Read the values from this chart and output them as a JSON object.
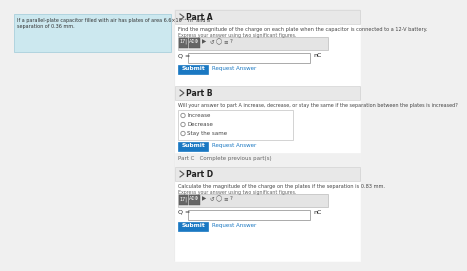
{
  "bg_color": "#f0f0f0",
  "white": "#ffffff",
  "teal_bg": "#cce8ef",
  "blue_btn": "#1a78c2",
  "link_color": "#1a78c2",
  "border_color": "#cccccc",
  "text_dark": "#222222",
  "text_mid": "#444444",
  "text_light": "#666666",
  "light_gray": "#e8e8e8",
  "panel_gray": "#f4f4f4",
  "toolbar_dark": "#777777",
  "input_bg": "#ffffff",
  "header_bg": "#e8e8e8",
  "radio_border": "#888888",
  "partA_label": "Part A",
  "partA_desc": "Find the magnitude of the charge on each plate when the capacitor is connected to a 12-V battery.",
  "partA_sig": "Express your answer using two significant figures.",
  "partA_var": "Q =",
  "partA_unit": "nC",
  "partB_label": "Part B",
  "partB_desc": "Will your answer to part A increase, decrease, or stay the same if the separation between the plates is increased?",
  "radio_options": [
    "Increase",
    "Decrease",
    "Stay the same"
  ],
  "partC_text": "Part C   Complete previous part(s)",
  "partD_label": "Part D",
  "partD_desc": "Calculate the magnitude of the charge on the plates if the separation is 0.83 mm.",
  "partD_sig": "Express your answer using two significant figures.",
  "partD_var": "Q =",
  "partD_unit": "nC",
  "submit_text": "Submit",
  "request_text": "Request Answer",
  "problem_line1": "If a parallel-plate capacitor filled with air has plates of area 6.6×10⁻³ m² and a",
  "problem_line2": "separation of 0.36 mm.",
  "toolbar_btns": [
    "17|",
    "AΣΦ",
    "▶",
    "↺",
    "◯",
    "≡",
    "?"
  ]
}
